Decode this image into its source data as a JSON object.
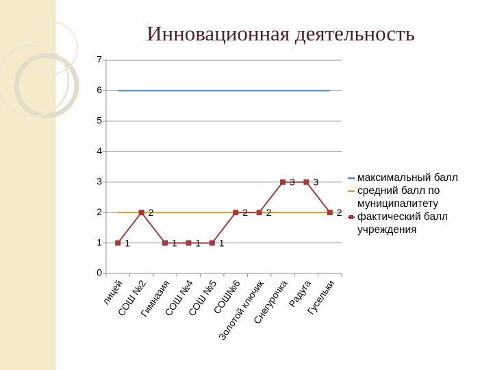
{
  "chart_data": {
    "type": "line",
    "title": "Инновационная деятельность",
    "categories": [
      "лицей",
      "СОШ №2",
      "Гимназия",
      "СОШ №4",
      "СОШ №5",
      "СОШ№6",
      "Золотой ключик",
      "Снегурочка",
      "Радуга",
      "Гусельки"
    ],
    "series": [
      {
        "name": "максимальный балл",
        "color": "#4f81bd",
        "values": [
          6,
          6,
          6,
          6,
          6,
          6,
          6,
          6,
          6,
          6
        ]
      },
      {
        "name": "средний балл по муниципалитету",
        "color": "#c9a227",
        "values": [
          2,
          2,
          2,
          2,
          2,
          2,
          2,
          2,
          2,
          2
        ]
      },
      {
        "name": "фактический балл учреждения",
        "color": "#a33a3a",
        "values": [
          1,
          2,
          1,
          1,
          1,
          2,
          2,
          3,
          3,
          2
        ],
        "markers": true,
        "data_labels": true
      }
    ],
    "ylim": [
      0,
      7
    ],
    "yticks": [
      0,
      1,
      2,
      3,
      4,
      5,
      6,
      7
    ],
    "grid": true,
    "legend": "right"
  }
}
